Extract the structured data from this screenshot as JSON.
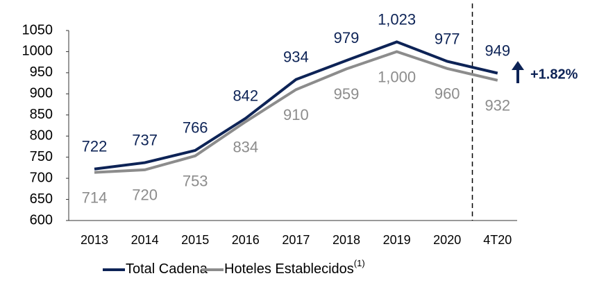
{
  "chart_data": {
    "type": "line",
    "categories": [
      "2013",
      "2014",
      "2015",
      "2016",
      "2017",
      "2018",
      "2019",
      "2020",
      "4T20"
    ],
    "series": [
      {
        "name": "Total Cadena",
        "color": "#0d2356",
        "values": [
          722,
          737,
          766,
          842,
          934,
          979,
          1023,
          977,
          949
        ],
        "value_labels": [
          "722",
          "737",
          "766",
          "842",
          "934",
          "979",
          "1,023",
          "977",
          "949"
        ]
      },
      {
        "name": "Hoteles Establecidos",
        "name_superscript": "(1)",
        "color": "#8c8c8c",
        "values": [
          714,
          720,
          753,
          834,
          910,
          959,
          1000,
          960,
          932
        ],
        "value_labels": [
          "714",
          "720",
          "753",
          "834",
          "910",
          "959",
          "1,000",
          "960",
          "932"
        ]
      }
    ],
    "ylim": [
      600,
      1050
    ],
    "yticks": [
      600,
      650,
      700,
      750,
      800,
      850,
      900,
      950,
      1000,
      1050
    ],
    "annotation": "+1.82%",
    "grid": false,
    "legend": "bottom"
  }
}
